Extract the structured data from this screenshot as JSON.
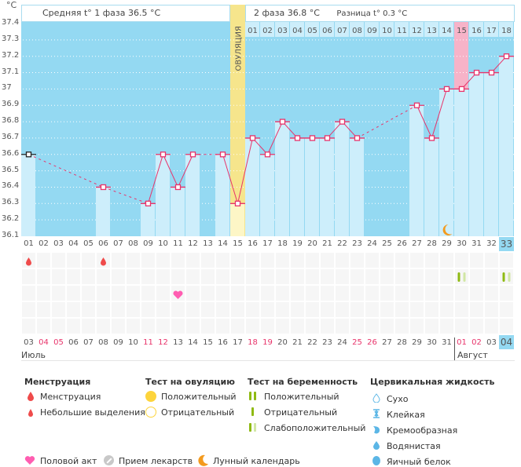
{
  "header": {
    "unit": "°C",
    "phase1": "Средняя t° 1 фаза 36.5 °C",
    "phase2": "2 фаза 36.8 °C",
    "diff": "Разница t° 0.3 °C",
    "ovulation_label": "ОВУЛЯЦИЯ"
  },
  "colors": {
    "chart_bg": "#94d9f2",
    "bar": "#cdeefb",
    "line": "#e8336a",
    "ovulation": "#f6e58c",
    "highlight": "#f7b3c8",
    "moon": "#f39a1e",
    "heart": "#ff5db1",
    "drop": "#ef4b4b",
    "test_green": "#8fba13",
    "test_light": "#d1e7a4"
  },
  "chart_data": {
    "type": "line",
    "title": "",
    "ylabel": "°C",
    "ylim": [
      36.1,
      37.4
    ],
    "yticks": [
      "37.4",
      "37.3",
      "37.2",
      "37.1",
      "37",
      "36.9",
      "36.8",
      "36.7",
      "36.6",
      "36.5",
      "36.4",
      "36.3",
      "36.2",
      "36.1"
    ],
    "cycle_days": [
      "01",
      "02",
      "03",
      "04",
      "05",
      "06",
      "07",
      "08",
      "09",
      "10",
      "11",
      "12",
      "13",
      "14",
      "15",
      "16",
      "17",
      "18",
      "19",
      "20",
      "21",
      "22",
      "23",
      "24",
      "25",
      "26",
      "27",
      "28",
      "29",
      "30",
      "31",
      "32",
      "33"
    ],
    "post_ovulation_days": [
      "01",
      "02",
      "03",
      "04",
      "05",
      "06",
      "07",
      "08",
      "09",
      "10",
      "11",
      "12",
      "13",
      "14",
      "15",
      "16",
      "17",
      "18"
    ],
    "dates": [
      "03",
      "04",
      "05",
      "06",
      "07",
      "08",
      "09",
      "10",
      "11",
      "12",
      "13",
      "14",
      "15",
      "16",
      "17",
      "18",
      "19",
      "20",
      "21",
      "22",
      "23",
      "24",
      "25",
      "26",
      "27",
      "28",
      "29",
      "30",
      "31",
      "01",
      "02",
      "03",
      "04"
    ],
    "weekend_dates_idx": [
      1,
      2,
      8,
      9,
      15,
      16,
      22,
      23,
      29,
      30
    ],
    "months": [
      {
        "label": "Июль",
        "start_index": 0
      },
      {
        "label": "Август",
        "start_index": 29
      }
    ],
    "ovulation_day": 15,
    "highlight_post_day": 15,
    "current_day": 33,
    "series": [
      {
        "name": "Температура",
        "points": [
          {
            "day": 1,
            "t": 36.6
          },
          {
            "day": 6,
            "t": 36.4
          },
          {
            "day": 9,
            "t": 36.3
          },
          {
            "day": 10,
            "t": 36.6
          },
          {
            "day": 11,
            "t": 36.4
          },
          {
            "day": 12,
            "t": 36.6
          },
          {
            "day": 14,
            "t": 36.6
          },
          {
            "day": 15,
            "t": 36.3
          },
          {
            "day": 16,
            "t": 36.7
          },
          {
            "day": 17,
            "t": 36.6
          },
          {
            "day": 18,
            "t": 36.8
          },
          {
            "day": 19,
            "t": 36.7
          },
          {
            "day": 20,
            "t": 36.7
          },
          {
            "day": 21,
            "t": 36.7
          },
          {
            "day": 22,
            "t": 36.8
          },
          {
            "day": 23,
            "t": 36.7
          },
          {
            "day": 27,
            "t": 36.9
          },
          {
            "day": 28,
            "t": 36.7
          },
          {
            "day": 29,
            "t": 37.0
          },
          {
            "day": 30,
            "t": 37.0
          },
          {
            "day": 31,
            "t": 37.1
          },
          {
            "day": 32,
            "t": 37.1
          },
          {
            "day": 33,
            "t": 37.2
          }
        ]
      }
    ],
    "events": {
      "menstruation_days": [
        1,
        6
      ],
      "intercourse_days": [
        11
      ],
      "pregnancy_test_weak_positive_days": [
        30,
        33
      ],
      "moon_days": [
        29
      ]
    }
  },
  "legend": {
    "menstruation": {
      "title": "Менструация",
      "items": [
        "Менструация",
        "Небольшие выделения"
      ]
    },
    "ovulation_test": {
      "title": "Тест на овуляцию",
      "items": [
        "Положительный",
        "Отрицательный"
      ]
    },
    "pregnancy_test": {
      "title": "Тест на беременность",
      "items": [
        "Положительный",
        "Отрицательный",
        "Слабоположительный"
      ]
    },
    "cervical": {
      "title": "Цервикальная жидкость",
      "items": [
        "Сухо",
        "Клейкая",
        "Кремообразная",
        "Водянистая",
        "Яичный белок"
      ]
    },
    "bottom": [
      "Половой акт",
      "Прием лекарств",
      "Лунный календарь"
    ]
  }
}
